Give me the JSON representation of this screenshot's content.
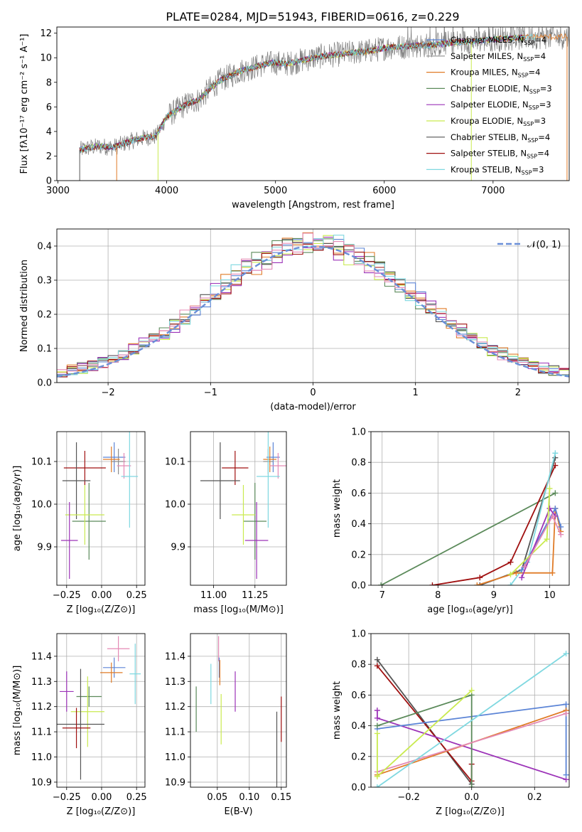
{
  "figure": {
    "title": "PLATE=0284, MJD=51943, FIBERID=0616, z=0.229"
  },
  "colors": {
    "Chabrier MILES": "#5b84d6",
    "Salpeter MILES": "#8e8e8e",
    "Kroupa MILES": "#e07b27",
    "Chabrier ELODIE": "#5b8a5a",
    "Salpeter ELODIE": "#9c33b8",
    "Kroupa ELODIE": "#c9ea4f",
    "Chabrier STELIB": "#555555",
    "Salpeter STELIB": "#a01010",
    "Kroupa STELIB": "#7fd8e0",
    "pink": "#e48ab5",
    "data": "#7f7f7f",
    "normal": "#6a8fd8"
  },
  "chart_data": [
    {
      "id": "spectrum",
      "type": "line",
      "xlabel": "wavelength [Angstrom, rest frame]",
      "ylabel": "Flux [fλ10⁻¹⁷ erg cm⁻² s⁻¹ A⁻¹]",
      "xlim": [
        2990,
        7700
      ],
      "ylim": [
        0,
        12.5
      ],
      "xticks": [
        3000,
        4000,
        5000,
        6000,
        7000
      ],
      "yticks": [
        0,
        2,
        4,
        6,
        8,
        10,
        12
      ],
      "legend_position": "top-right",
      "legend": [
        {
          "label": "Chabrier MILES, N",
          "sub": "SSP",
          "suffix": "=4",
          "color": "#5b84d6"
        },
        {
          "label": "Salpeter MILES, N",
          "sub": "SSP",
          "suffix": "=4",
          "color": "#8e8e8e"
        },
        {
          "label": "Kroupa MILES, N",
          "sub": "SSP",
          "suffix": "=4",
          "color": "#e07b27"
        },
        {
          "label": "Chabrier ELODIE, N",
          "sub": "SSP",
          "suffix": "=3",
          "color": "#5b8a5a"
        },
        {
          "label": "Salpeter ELODIE, N",
          "sub": "SSP",
          "suffix": "=3",
          "color": "#9c33b8"
        },
        {
          "label": "Kroupa ELODIE, N",
          "sub": "SSP",
          "suffix": "=3",
          "color": "#c9ea4f"
        },
        {
          "label": "Chabrier STELIB, N",
          "sub": "SSP",
          "suffix": "=4",
          "color": "#555555"
        },
        {
          "label": "Salpeter STELIB, N",
          "sub": "SSP",
          "suffix": "=4",
          "color": "#a01010"
        },
        {
          "label": "Kroupa STELIB, N",
          "sub": "SSP",
          "suffix": "=3",
          "color": "#7fd8e0"
        }
      ],
      "continuum": [
        [
          3200,
          2.5
        ],
        [
          3300,
          2.7
        ],
        [
          3400,
          2.8
        ],
        [
          3500,
          2.7
        ],
        [
          3600,
          3.0
        ],
        [
          3700,
          3.3
        ],
        [
          3800,
          3.5
        ],
        [
          3900,
          3.6
        ],
        [
          4000,
          5.2
        ],
        [
          4100,
          5.8
        ],
        [
          4200,
          6.3
        ],
        [
          4300,
          6.6
        ],
        [
          4400,
          7.5
        ],
        [
          4500,
          8.2
        ],
        [
          4600,
          8.6
        ],
        [
          4700,
          9.0
        ],
        [
          4800,
          9.2
        ],
        [
          4900,
          9.5
        ],
        [
          5000,
          9.6
        ],
        [
          5100,
          9.5
        ],
        [
          5200,
          9.7
        ],
        [
          5300,
          9.9
        ],
        [
          5400,
          10.1
        ],
        [
          5500,
          10.2
        ],
        [
          5600,
          10.3
        ],
        [
          5700,
          10.4
        ],
        [
          5800,
          10.5
        ],
        [
          5900,
          10.6
        ],
        [
          6000,
          10.8
        ],
        [
          6100,
          10.9
        ],
        [
          6200,
          10.9
        ],
        [
          6300,
          11.0
        ],
        [
          6400,
          11.0
        ],
        [
          6500,
          11.1
        ],
        [
          6600,
          11.2
        ],
        [
          6700,
          11.3
        ],
        [
          6800,
          11.3
        ],
        [
          6900,
          11.4
        ],
        [
          7000,
          11.5
        ],
        [
          7200,
          11.6
        ],
        [
          7350,
          11.7
        ]
      ]
    },
    {
      "id": "residuals",
      "type": "histogram",
      "xlabel": "(data-model)/error",
      "ylabel": "Normed distribution",
      "xlim": [
        -2.5,
        2.5
      ],
      "ylim": [
        0,
        0.45
      ],
      "xticks": [
        -2,
        -1,
        0,
        1,
        2
      ],
      "yticks": [
        0.0,
        0.1,
        0.2,
        0.3,
        0.4
      ],
      "grid": true,
      "legend_position": "top-right",
      "legend": [
        {
          "label": "𝒩(0, 1)",
          "color": "#6a8fd8",
          "style": "dashed"
        }
      ],
      "bin_width": 0.1
    },
    {
      "id": "age_vs_Z",
      "type": "errorbar",
      "xlabel": "Z [log₁₀(Z/Z⊙)]",
      "ylabel": "age  [log₁₀(age/yr)]",
      "xlim": [
        -0.32,
        0.31
      ],
      "ylim": [
        9.81,
        10.17
      ],
      "xticks": [
        -0.25,
        0.0,
        0.25
      ],
      "xticklabels": [
        "−0.25",
        "0.00",
        "0.25"
      ],
      "yticks": [
        9.9,
        10.0,
        10.1
      ],
      "grid": true,
      "points": [
        {
          "c": "#5b84d6",
          "x": 0.09,
          "xe": 0.08,
          "y": 10.11,
          "ye": 0.035
        },
        {
          "c": "#8e8e8e",
          "x": 0.12,
          "xe": 0.05,
          "y": 10.1,
          "ye": 0.03
        },
        {
          "c": "#e07b27",
          "x": 0.07,
          "xe": 0.06,
          "y": 10.105,
          "ye": 0.03
        },
        {
          "c": "#e48ab5",
          "x": 0.16,
          "xe": 0.05,
          "y": 10.09,
          "ye": 0.03
        },
        {
          "c": "#a01010",
          "x": -0.12,
          "xe": 0.15,
          "y": 10.085,
          "ye": 0.04
        },
        {
          "c": "#555555",
          "x": -0.18,
          "xe": 0.1,
          "y": 10.055,
          "ye": 0.09
        },
        {
          "c": "#7fd8e0",
          "x": 0.2,
          "xe": 0.06,
          "y": 10.065,
          "ye": 0.12
        },
        {
          "c": "#5b8a5a",
          "x": -0.09,
          "xe": 0.12,
          "y": 9.96,
          "ye": 0.09
        },
        {
          "c": "#c9ea4f",
          "x": -0.12,
          "xe": 0.14,
          "y": 9.975,
          "ye": 0.07
        },
        {
          "c": "#9c33b8",
          "x": -0.23,
          "xe": 0.06,
          "y": 9.915,
          "ye": 0.09
        }
      ]
    },
    {
      "id": "age_vs_mass",
      "type": "errorbar",
      "xlabel": "mass [log₁₀(M/M⊙)]",
      "xlim": [
        10.86,
        11.44
      ],
      "ylim": [
        9.81,
        10.17
      ],
      "xticks": [
        11.0,
        11.25
      ],
      "xticklabels": [
        "11.00",
        "11.25"
      ],
      "yticks": [
        9.9,
        10.0,
        10.1
      ],
      "grid": true,
      "points": [
        {
          "c": "#5b84d6",
          "x": 11.36,
          "xe": 0.04,
          "y": 10.11,
          "ye": 0.035
        },
        {
          "c": "#8e8e8e",
          "x": 11.33,
          "xe": 0.03,
          "y": 10.1,
          "ye": 0.03
        },
        {
          "c": "#e07b27",
          "x": 11.34,
          "xe": 0.04,
          "y": 10.105,
          "ye": 0.03
        },
        {
          "c": "#e48ab5",
          "x": 11.39,
          "xe": 0.05,
          "y": 10.09,
          "ye": 0.03
        },
        {
          "c": "#a01010",
          "x": 11.13,
          "xe": 0.08,
          "y": 10.085,
          "ye": 0.04
        },
        {
          "c": "#555555",
          "x": 11.04,
          "xe": 0.12,
          "y": 10.055,
          "ye": 0.09
        },
        {
          "c": "#7fd8e0",
          "x": 11.33,
          "xe": 0.07,
          "y": 10.065,
          "ye": 0.12
        },
        {
          "c": "#5b8a5a",
          "x": 11.25,
          "xe": 0.07,
          "y": 9.96,
          "ye": 0.09
        },
        {
          "c": "#c9ea4f",
          "x": 11.18,
          "xe": 0.07,
          "y": 9.975,
          "ye": 0.07
        },
        {
          "c": "#9c33b8",
          "x": 11.26,
          "xe": 0.07,
          "y": 9.915,
          "ye": 0.09
        }
      ]
    },
    {
      "id": "weight_vs_age",
      "type": "line",
      "xlabel": "age  [log₁₀(age/yr)]",
      "ylabel": "mass weight",
      "xlim": [
        6.8,
        10.35
      ],
      "ylim": [
        0,
        1.0
      ],
      "xticks": [
        7,
        8,
        9,
        10
      ],
      "yticks": [
        0.0,
        0.2,
        0.4,
        0.6,
        0.8,
        1.0
      ],
      "grid": true,
      "series": [
        {
          "c": "#5b8a5a",
          "pts": [
            [
              6.98,
              0.0
            ],
            [
              10.1,
              0.6
            ]
          ]
        },
        {
          "c": "#a01010",
          "pts": [
            [
              7.9,
              0.0
            ],
            [
              8.75,
              0.05
            ],
            [
              9.3,
              0.15
            ],
            [
              10.1,
              0.78
            ]
          ]
        },
        {
          "c": "#555555",
          "pts": [
            [
              8.75,
              0.0
            ],
            [
              9.5,
              0.1
            ],
            [
              10.1,
              0.83
            ]
          ]
        },
        {
          "c": "#7fd8e0",
          "pts": [
            [
              9.3,
              0.0
            ],
            [
              9.6,
              0.15
            ],
            [
              10.1,
              0.86
            ]
          ]
        },
        {
          "c": "#e07b27",
          "pts": [
            [
              8.7,
              0.0
            ],
            [
              9.4,
              0.08
            ],
            [
              10.05,
              0.08
            ],
            [
              10.1,
              0.5
            ],
            [
              10.2,
              0.35
            ]
          ]
        },
        {
          "c": "#5b84d6",
          "pts": [
            [
              9.5,
              0.1
            ],
            [
              10.1,
              0.5
            ],
            [
              10.2,
              0.38
            ]
          ]
        },
        {
          "c": "#9c33b8",
          "pts": [
            [
              9.5,
              0.05
            ],
            [
              10.0,
              0.5
            ],
            [
              10.1,
              0.45
            ]
          ]
        },
        {
          "c": "#c9ea4f",
          "pts": [
            [
              9.3,
              0.07
            ],
            [
              9.95,
              0.3
            ],
            [
              10.0,
              0.63
            ]
          ]
        },
        {
          "c": "#e48ab5",
          "pts": [
            [
              9.55,
              0.12
            ],
            [
              10.05,
              0.45
            ],
            [
              10.2,
              0.33
            ]
          ]
        }
      ]
    },
    {
      "id": "mass_vs_Z",
      "type": "errorbar",
      "xlabel": "Z [log₁₀(Z/Z⊙)]",
      "ylabel": "mass [log₁₀(M/M⊙)]",
      "xlim": [
        -0.32,
        0.31
      ],
      "ylim": [
        10.88,
        11.49
      ],
      "xticks": [
        -0.25,
        0.0,
        0.25
      ],
      "xticklabels": [
        "−0.25",
        "0.00",
        "0.25"
      ],
      "yticks": [
        10.9,
        11.0,
        11.1,
        11.2,
        11.3,
        11.4
      ],
      "grid": true,
      "points": [
        {
          "c": "#e48ab5",
          "x": 0.12,
          "xe": 0.08,
          "y": 11.43,
          "ye": 0.05
        },
        {
          "c": "#5b84d6",
          "x": 0.09,
          "xe": 0.08,
          "y": 11.355,
          "ye": 0.04
        },
        {
          "c": "#e07b27",
          "x": 0.07,
          "xe": 0.08,
          "y": 11.335,
          "ye": 0.04
        },
        {
          "c": "#7fd8e0",
          "x": 0.24,
          "xe": 0.04,
          "y": 11.33,
          "ye": 0.12
        },
        {
          "c": "#9c33b8",
          "x": -0.25,
          "xe": 0.05,
          "y": 11.26,
          "ye": 0.08
        },
        {
          "c": "#5b8a5a",
          "x": -0.09,
          "xe": 0.09,
          "y": 11.24,
          "ye": 0.04
        },
        {
          "c": "#c9ea4f",
          "x": -0.1,
          "xe": 0.12,
          "y": 11.18,
          "ye": 0.14
        },
        {
          "c": "#555555",
          "x": -0.15,
          "xe": 0.17,
          "y": 11.13,
          "ye": 0.22
        },
        {
          "c": "#a01010",
          "x": -0.18,
          "xe": 0.1,
          "y": 11.115,
          "ye": 0.08
        }
      ]
    },
    {
      "id": "mass_vs_EBV",
      "type": "errorbar",
      "xlabel": "E(B-V)",
      "xlim": [
        0.008,
        0.158
      ],
      "ylim": [
        10.88,
        11.49
      ],
      "xticks": [
        0.05,
        0.1,
        0.15
      ],
      "xticklabels": [
        "0.05",
        "0.10",
        "0.15"
      ],
      "yticks": [
        10.9,
        11.0,
        11.1,
        11.2,
        11.3,
        11.4
      ],
      "grid": true,
      "points": [
        {
          "c": "#e48ab5",
          "x": 0.052,
          "xe": 0.0,
          "y": 11.43,
          "ye": 0.05
        },
        {
          "c": "#5b84d6",
          "x": 0.053,
          "xe": 0.0,
          "y": 11.355,
          "ye": 0.04
        },
        {
          "c": "#e07b27",
          "x": 0.054,
          "xe": 0.0,
          "y": 11.335,
          "ye": 0.05
        },
        {
          "c": "#7fd8e0",
          "x": 0.04,
          "xe": 0.0,
          "y": 11.29,
          "ye": 0.08
        },
        {
          "c": "#9c33b8",
          "x": 0.078,
          "xe": 0.0,
          "y": 11.26,
          "ye": 0.08
        },
        {
          "c": "#5b8a5a",
          "x": 0.017,
          "xe": 0.0,
          "y": 11.19,
          "ye": 0.09
        },
        {
          "c": "#c9ea4f",
          "x": 0.056,
          "xe": 0.0,
          "y": 11.15,
          "ye": 0.1
        },
        {
          "c": "#555555",
          "x": 0.143,
          "xe": 0.0,
          "y": 11.03,
          "ye": 0.15
        },
        {
          "c": "#a01010",
          "x": 0.15,
          "xe": 0.0,
          "y": 11.15,
          "ye": 0.09
        }
      ]
    },
    {
      "id": "weight_vs_Z",
      "type": "line",
      "xlabel": "Z [log₁₀(Z/Z⊙)]",
      "ylabel": "mass weight",
      "xlim": [
        -0.32,
        0.31
      ],
      "ylim": [
        0,
        1.0
      ],
      "xticks": [
        -0.2,
        0.0,
        0.2
      ],
      "xticklabels": [
        "−0.2",
        "0.0",
        "0.2"
      ],
      "yticks": [
        0.0,
        0.2,
        0.4,
        0.6,
        0.8,
        1.0
      ],
      "grid": true,
      "series": [
        {
          "c": "#555555",
          "pts": [
            [
              -0.3,
              0.83
            ],
            [
              0.0,
              0.02
            ]
          ]
        },
        {
          "c": "#a01010",
          "pts": [
            [
              -0.3,
              0.79
            ],
            [
              0.0,
              0.04
            ],
            [
              0.0,
              0.15
            ]
          ]
        },
        {
          "c": "#9c33b8",
          "pts": [
            [
              -0.3,
              0.5
            ],
            [
              -0.3,
              0.45
            ],
            [
              0.3,
              0.05
            ]
          ]
        },
        {
          "c": "#5b84d6",
          "pts": [
            [
              -0.3,
              0.38
            ],
            [
              0.3,
              0.54
            ],
            [
              0.3,
              0.08
            ]
          ]
        },
        {
          "c": "#5b8a5a",
          "pts": [
            [
              -0.3,
              0.4
            ],
            [
              0.0,
              0.6
            ],
            [
              0.0,
              0.0
            ]
          ]
        },
        {
          "c": "#e07b27",
          "pts": [
            [
              -0.3,
              0.08
            ],
            [
              0.3,
              0.5
            ]
          ]
        },
        {
          "c": "#e48ab5",
          "pts": [
            [
              -0.3,
              0.1
            ],
            [
              0.3,
              0.48
            ]
          ]
        },
        {
          "c": "#c9ea4f",
          "pts": [
            [
              -0.3,
              0.35
            ],
            [
              -0.3,
              0.07
            ],
            [
              0.0,
              0.63
            ]
          ]
        },
        {
          "c": "#7fd8e0",
          "pts": [
            [
              -0.3,
              0.0
            ],
            [
              0.3,
              0.87
            ]
          ]
        }
      ]
    }
  ]
}
